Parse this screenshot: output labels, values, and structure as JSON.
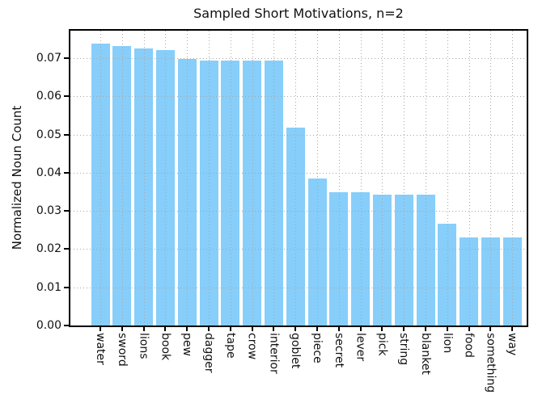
{
  "chart_data": {
    "type": "bar",
    "title": "Sampled Short Motivations, n=2",
    "xlabel": "",
    "ylabel": "Normalized Noun Count",
    "categories": [
      "water",
      "sword",
      "lions",
      "book",
      "pew",
      "dagger",
      "tape",
      "crow",
      "interior",
      "goblet",
      "piece",
      "secret",
      "lever",
      "pick",
      "string",
      "blanket",
      "lion",
      "food",
      "something",
      "way"
    ],
    "values": [
      0.0738,
      0.0732,
      0.0726,
      0.0721,
      0.0699,
      0.0693,
      0.0693,
      0.0693,
      0.0693,
      0.0518,
      0.0385,
      0.0348,
      0.0348,
      0.0343,
      0.0343,
      0.0343,
      0.0267,
      0.0231,
      0.0231,
      0.0231
    ],
    "ylim": [
      0,
      0.0772
    ],
    "ytick_values": [
      0.0,
      0.01,
      0.02,
      0.03,
      0.04,
      0.05,
      0.06,
      0.07
    ],
    "ytick_labels": [
      "0.00",
      "0.01",
      "0.02",
      "0.03",
      "0.04",
      "0.05",
      "0.06",
      "0.07"
    ],
    "xtick_label_rotation": "vertical",
    "grid": "dotted gridlines on both axes, drawn over bars",
    "legend": "none",
    "bar_color": "#87CEFA",
    "grid_color": "#ada5a0",
    "spine_color": "#000000",
    "background_color": "#ffffff"
  }
}
